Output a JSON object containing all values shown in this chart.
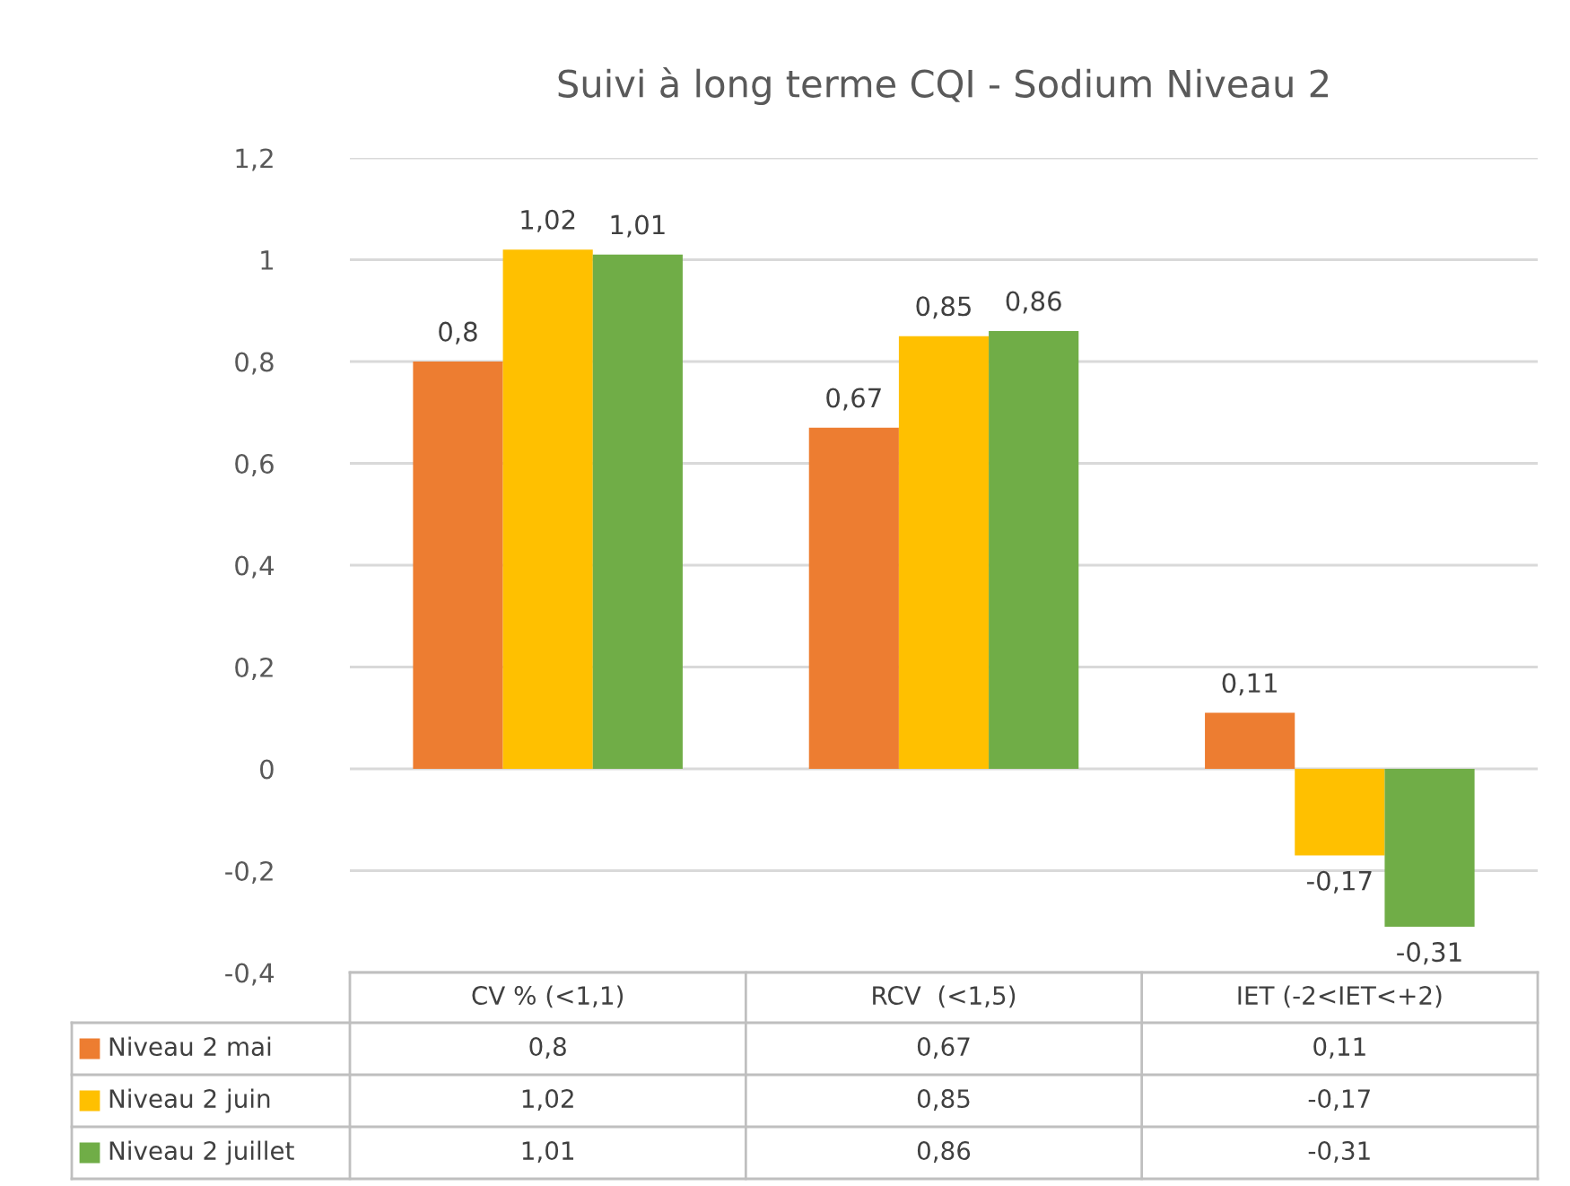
{
  "chart_data": {
    "type": "bar",
    "title": "Suivi à long terme CQI - Sodium Niveau 2",
    "categories": [
      "CV % (<1,1)",
      "RCV  (<1,5)",
      "IET (-2<IET<+2)"
    ],
    "series": [
      {
        "name": "Niveau 2 mai",
        "color": "#ed7d31",
        "values": [
          0.8,
          0.67,
          0.11
        ],
        "value_labels": [
          "0,8",
          "0,67",
          "0,11"
        ]
      },
      {
        "name": "Niveau 2 juin",
        "color": "#ffc000",
        "values": [
          1.02,
          0.85,
          -0.17
        ],
        "value_labels": [
          "1,02",
          "0,85",
          "-0,17"
        ]
      },
      {
        "name": "Niveau 2 juillet",
        "color": "#70ad47",
        "values": [
          1.01,
          0.86,
          -0.31
        ],
        "value_labels": [
          "1,01",
          "0,86",
          "-0,31"
        ]
      }
    ],
    "ylim": [
      -0.4,
      1.2
    ],
    "yticks": [
      {
        "value": -0.4,
        "label": "-0,4"
      },
      {
        "value": -0.2,
        "label": "-0,2"
      },
      0,
      {
        "value": 0.2,
        "label": "0,2"
      },
      {
        "value": 0.4,
        "label": "0,4"
      },
      {
        "value": 0.6,
        "label": "0,6"
      },
      {
        "value": 0.8,
        "label": "0,8"
      },
      1,
      {
        "value": 1.2,
        "label": "1,2"
      }
    ],
    "grid": "y",
    "legend": "bottom"
  }
}
